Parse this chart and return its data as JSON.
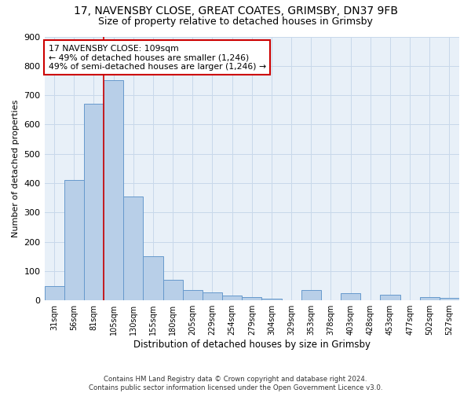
{
  "title1": "17, NAVENSBY CLOSE, GREAT COATES, GRIMSBY, DN37 9FB",
  "title2": "Size of property relative to detached houses in Grimsby",
  "xlabel": "Distribution of detached houses by size in Grimsby",
  "ylabel": "Number of detached properties",
  "footnote": "Contains HM Land Registry data © Crown copyright and database right 2024.\nContains public sector information licensed under the Open Government Licence v3.0.",
  "categories": [
    "31sqm",
    "56sqm",
    "81sqm",
    "105sqm",
    "130sqm",
    "155sqm",
    "180sqm",
    "205sqm",
    "229sqm",
    "254sqm",
    "279sqm",
    "304sqm",
    "329sqm",
    "353sqm",
    "378sqm",
    "403sqm",
    "428sqm",
    "453sqm",
    "477sqm",
    "502sqm",
    "527sqm"
  ],
  "values": [
    48,
    410,
    670,
    750,
    355,
    150,
    70,
    36,
    28,
    17,
    10,
    5,
    0,
    35,
    0,
    25,
    0,
    18,
    0,
    12,
    8
  ],
  "bar_color": "#b8cfe8",
  "bar_edge_color": "#6699cc",
  "property_line_x": 2.5,
  "property_line_color": "#cc0000",
  "annotation_text": "17 NAVENSBY CLOSE: 109sqm\n← 49% of detached houses are smaller (1,246)\n49% of semi-detached houses are larger (1,246) →",
  "annotation_box_color": "#cc0000",
  "ylim": [
    0,
    900
  ],
  "yticks": [
    0,
    100,
    200,
    300,
    400,
    500,
    600,
    700,
    800,
    900
  ],
  "grid_color": "#c8d8ea",
  "bg_color": "#e8f0f8",
  "title_fontsize": 10,
  "subtitle_fontsize": 9
}
